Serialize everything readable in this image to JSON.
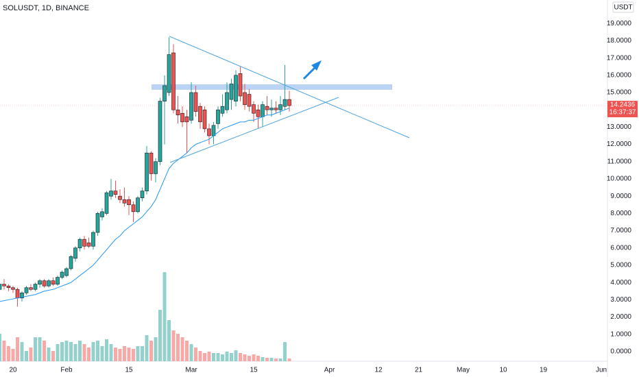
{
  "chart_data": {
    "type": "candlestick",
    "title": "SOLUSDT, 1D, BINANCE",
    "currency": "USDT",
    "countdown": "16:37:37",
    "categories": [
      null,
      null,
      null,
      "20",
      null,
      null,
      null,
      null,
      null,
      null,
      null,
      null,
      null,
      null,
      null,
      "Feb",
      null,
      null,
      null,
      null,
      null,
      null,
      null,
      null,
      null,
      null,
      null,
      null,
      null,
      "15",
      null,
      null,
      null,
      null,
      null,
      null,
      null,
      null,
      null,
      null,
      null,
      null,
      null,
      "Mar",
      null,
      null,
      null,
      null,
      null,
      null,
      null,
      null,
      null,
      null,
      null,
      null,
      null,
      "15",
      null,
      null,
      null,
      null,
      null,
      null,
      null,
      null,
      null,
      null,
      null,
      null,
      null,
      null,
      null,
      null,
      "Apr",
      null,
      null,
      null,
      null,
      null,
      null,
      null,
      null,
      null,
      null,
      "12",
      null,
      null,
      null,
      null,
      null,
      null,
      null,
      null,
      "21",
      null,
      null,
      null,
      null,
      null,
      null,
      null,
      null,
      null,
      "May",
      null,
      null,
      null,
      null,
      null,
      null,
      null,
      null,
      "10",
      null,
      null,
      null,
      null,
      null,
      null,
      null,
      null,
      "19",
      null,
      null,
      null,
      null,
      null,
      null,
      null,
      null,
      null,
      null,
      null,
      null,
      "Jun"
    ],
    "open": [
      3.6,
      3.9,
      3.8,
      3.7,
      3.6,
      3.1,
      3.4,
      3.7,
      3.6,
      3.9,
      4.1,
      3.8,
      4.1,
      3.9,
      4.3,
      4.4,
      4.8,
      5.4,
      6.0,
      6.5,
      6.3,
      6.1,
      6.9,
      7.8,
      8.0,
      9.0,
      9.3,
      9.0,
      8.8,
      8.8,
      8.5,
      8.1,
      8.9,
      9.3,
      11.5,
      10.3,
      11.0,
      14.5,
      15.0,
      17.3,
      14.0,
      13.8,
      13.6,
      13.4,
      15.0,
      14.2,
      14.0,
      12.9,
      12.5,
      13.2,
      13.8,
      14.0,
      14.6,
      14.5,
      16.1,
      15.0,
      14.9,
      14.3,
      14.0,
      13.6,
      14.2,
      14.0,
      14.1,
      14.0,
      14.2,
      14.6,
      null,
      null,
      null,
      null,
      null,
      null,
      null,
      null,
      null,
      null,
      null,
      null,
      null,
      null,
      null,
      null,
      null,
      null,
      null,
      null,
      null,
      null,
      null,
      null,
      null,
      null,
      null,
      null,
      null,
      null,
      null,
      null,
      null,
      null,
      null,
      null,
      null,
      null,
      null,
      null,
      null,
      null,
      null,
      null,
      null,
      null,
      null,
      null,
      null,
      null,
      null,
      null,
      null,
      null,
      null,
      null,
      null,
      null,
      null,
      null,
      null,
      null,
      null,
      null,
      null,
      null,
      null,
      null,
      null,
      null
    ],
    "high": [
      4.1,
      4.2,
      3.9,
      3.8,
      3.7,
      3.5,
      3.8,
      3.9,
      4.0,
      4.2,
      4.2,
      4.2,
      4.3,
      4.4,
      4.7,
      4.9,
      5.6,
      6.1,
      6.6,
      6.7,
      6.6,
      7.0,
      8.1,
      8.3,
      9.3,
      10.0,
      9.9,
      9.4,
      9.5,
      9.0,
      8.7,
      9.0,
      9.5,
      11.9,
      11.6,
      11.2,
      14.7,
      16.0,
      18.2,
      17.8,
      14.8,
      14.2,
      14.0,
      15.6,
      15.4,
      14.4,
      14.2,
      13.2,
      13.3,
      14.2,
      14.9,
      15.6,
      15.8,
      16.3,
      16.5,
      15.5,
      15.2,
      14.5,
      14.3,
      14.5,
      14.8,
      14.6,
      14.5,
      14.8,
      16.6,
      15.1,
      null,
      null,
      null,
      null,
      null,
      null,
      null,
      null,
      null,
      null,
      null,
      null,
      null,
      null,
      null,
      null,
      null,
      null,
      null,
      null,
      null,
      null,
      null,
      null,
      null,
      null,
      null,
      null,
      null,
      null,
      null,
      null,
      null,
      null,
      null,
      null,
      null,
      null,
      null,
      null,
      null,
      null,
      null,
      null,
      null,
      null,
      null,
      null,
      null,
      null,
      null,
      null,
      null,
      null,
      null,
      null,
      null,
      null,
      null,
      null,
      null,
      null,
      null,
      null,
      null,
      null,
      null,
      null,
      null,
      null
    ],
    "low": [
      3.4,
      3.6,
      3.5,
      3.4,
      2.6,
      2.9,
      3.3,
      3.5,
      3.5,
      3.7,
      3.7,
      3.7,
      3.8,
      3.8,
      4.2,
      4.3,
      4.7,
      5.2,
      5.8,
      5.9,
      6.0,
      5.9,
      6.7,
      7.6,
      7.9,
      8.8,
      8.9,
      8.6,
      8.4,
      7.9,
      7.5,
      8.0,
      8.7,
      9.1,
      9.9,
      9.8,
      10.8,
      12.0,
      14.8,
      13.8,
      13.2,
      13.0,
      11.5,
      13.2,
      13.6,
      12.9,
      12.7,
      12.0,
      12.0,
      12.9,
      13.6,
      13.8,
      14.0,
      14.2,
      14.5,
      14.0,
      13.9,
      13.3,
      12.9,
      13.0,
      13.7,
      13.6,
      13.8,
      13.7,
      14.0,
      13.9,
      null,
      null,
      null,
      null,
      null,
      null,
      null,
      null,
      null,
      null,
      null,
      null,
      null,
      null,
      null,
      null,
      null,
      null,
      null,
      null,
      null,
      null,
      null,
      null,
      null,
      null,
      null,
      null,
      null,
      null,
      null,
      null,
      null,
      null,
      null,
      null,
      null,
      null,
      null,
      null,
      null,
      null,
      null,
      null,
      null,
      null,
      null,
      null,
      null,
      null,
      null,
      null,
      null,
      null,
      null,
      null,
      null,
      null,
      null,
      null,
      null,
      null,
      null,
      null,
      null,
      null,
      null,
      null,
      null,
      null
    ],
    "close": [
      3.9,
      3.8,
      3.7,
      3.6,
      3.1,
      3.4,
      3.7,
      3.6,
      3.9,
      4.1,
      3.8,
      4.1,
      3.9,
      4.3,
      4.6,
      4.8,
      5.5,
      6.0,
      6.5,
      6.1,
      6.1,
      6.9,
      8.0,
      8.1,
      9.2,
      9.3,
      9.1,
      8.8,
      8.6,
      8.5,
      8.1,
      8.9,
      9.3,
      11.5,
      10.3,
      11.0,
      14.5,
      15.4,
      17.2,
      14.0,
      13.7,
      13.3,
      13.3,
      15.0,
      13.9,
      13.3,
      12.9,
      12.5,
      13.1,
      14.0,
      14.2,
      15.0,
      15.5,
      16.0,
      14.8,
      14.3,
      14.2,
      13.8,
      13.6,
      14.3,
      14.0,
      14.1,
      14.0,
      14.3,
      14.6,
      14.2436,
      null,
      null,
      null,
      null,
      null,
      null,
      null,
      null,
      null,
      null,
      null,
      null,
      null,
      null,
      null,
      null,
      null,
      null,
      null,
      null,
      null,
      null,
      null,
      null,
      null,
      null,
      null,
      null,
      null,
      null,
      null,
      null,
      null,
      null,
      null,
      null,
      null,
      null,
      null,
      null,
      null,
      null,
      null,
      null,
      null,
      null,
      null,
      null,
      null,
      null,
      null,
      null,
      null,
      null,
      null,
      null,
      null,
      null,
      null,
      null,
      null,
      null,
      null,
      null,
      null,
      null,
      null,
      null,
      null,
      null
    ],
    "volume": [
      4.0,
      3.0,
      2.2,
      1.8,
      3.5,
      2.8,
      1.5,
      2.0,
      3.5,
      3.5,
      3.0,
      2.0,
      1.5,
      2.5,
      2.8,
      3.0,
      2.8,
      2.5,
      3.0,
      2.5,
      2.0,
      2.8,
      3.0,
      2.2,
      3.2,
      2.5,
      2.0,
      1.8,
      2.2,
      2.0,
      1.8,
      2.2,
      2.2,
      3.8,
      3.0,
      3.5,
      7.5,
      13.0,
      6.0,
      4.5,
      4.0,
      3.5,
      3.0,
      2.5,
      2.0,
      1.5,
      1.2,
      1.4,
      1.2,
      1.2,
      1.0,
      1.4,
      1.2,
      1.6,
      1.2,
      1.0,
      0.8,
      1.0,
      0.8,
      0.6,
      0.5,
      0.5,
      0.4,
      0.4,
      2.8,
      0.4,
      null,
      null,
      null,
      null,
      null,
      null,
      null,
      null,
      null,
      null,
      null,
      null,
      null,
      null,
      null,
      null,
      null,
      null,
      null,
      null,
      null,
      null,
      null,
      null,
      null,
      null,
      null,
      null,
      null,
      null,
      null,
      null,
      null,
      null,
      null,
      null,
      null,
      null,
      null,
      null,
      null,
      null,
      null,
      null,
      null,
      null,
      null,
      null,
      null,
      null,
      null,
      null,
      null,
      null,
      null,
      null,
      null,
      null,
      null,
      null,
      null,
      null,
      null,
      null,
      null,
      null,
      null,
      null,
      null,
      null
    ],
    "ma": [
      2.9,
      2.95,
      3.0,
      3.05,
      3.1,
      3.15,
      3.2,
      3.25,
      3.3,
      3.4,
      3.5,
      3.55,
      3.6,
      3.7,
      3.8,
      3.9,
      4.0,
      4.2,
      4.4,
      4.6,
      4.8,
      5.0,
      5.3,
      5.6,
      5.9,
      6.2,
      6.5,
      6.7,
      7.0,
      7.2,
      7.4,
      7.6,
      7.8,
      8.1,
      8.4,
      8.8,
      9.4,
      10.0,
      10.6,
      10.9,
      11.1,
      11.3,
      11.5,
      11.8,
      12.0,
      12.1,
      12.2,
      12.3,
      12.5,
      12.7,
      12.9,
      13.0,
      13.1,
      13.2,
      13.3,
      13.3,
      13.4,
      13.4,
      13.5,
      13.6,
      13.7,
      13.7,
      13.8,
      13.9,
      14.0,
      14.1,
      null,
      null,
      null,
      null,
      null,
      null,
      null,
      null,
      null,
      null,
      null,
      null,
      null,
      null,
      null,
      null,
      null,
      null,
      null,
      null,
      null,
      null,
      null,
      null,
      null,
      null,
      null,
      null,
      null,
      null,
      null,
      null,
      null,
      null,
      null,
      null,
      null,
      null,
      null,
      null,
      null,
      null,
      null,
      null,
      null,
      null,
      null,
      null,
      null,
      null,
      null,
      null,
      null,
      null,
      null,
      null,
      null,
      null,
      null,
      null,
      null,
      null,
      null,
      null,
      null,
      null,
      null,
      null,
      null,
      null
    ],
    "up_color": "#26a69a",
    "down_color": "#ef5350",
    "volume_up_color": "#93d2cc",
    "volume_down_color": "#f7a9a7",
    "ma_color": "#2196f3",
    "ylim": [
      -0.56,
      20.36
    ],
    "volume_lim": [
      0,
      52.7
    ],
    "grid": false,
    "yticks": [
      {
        "value": 0,
        "label": "0.0000"
      },
      {
        "value": 1,
        "label": "1.0000"
      },
      {
        "value": 2,
        "label": "2.0000"
      },
      {
        "value": 3,
        "label": "3.0000"
      },
      {
        "value": 4,
        "label": "4.0000"
      },
      {
        "value": 5,
        "label": "5.0000"
      },
      {
        "value": 6,
        "label": "6.0000"
      },
      {
        "value": 7,
        "label": "7.0000"
      },
      {
        "value": 8,
        "label": "8.0000"
      },
      {
        "value": 9,
        "label": "9.0000"
      },
      {
        "value": 10,
        "label": "10.0000"
      },
      {
        "value": 11,
        "label": "11.0000"
      },
      {
        "value": 12,
        "label": "12.0000"
      },
      {
        "value": 13,
        "label": "13.0000"
      },
      {
        "value": 14,
        "label": "14.0000"
      },
      {
        "value": 15,
        "label": "15.0000"
      },
      {
        "value": 16,
        "label": "16.0000"
      },
      {
        "value": 17,
        "label": "17.0000"
      },
      {
        "value": 18,
        "label": "18.0000"
      },
      {
        "value": 19,
        "label": "19.0000"
      }
    ]
  }
}
